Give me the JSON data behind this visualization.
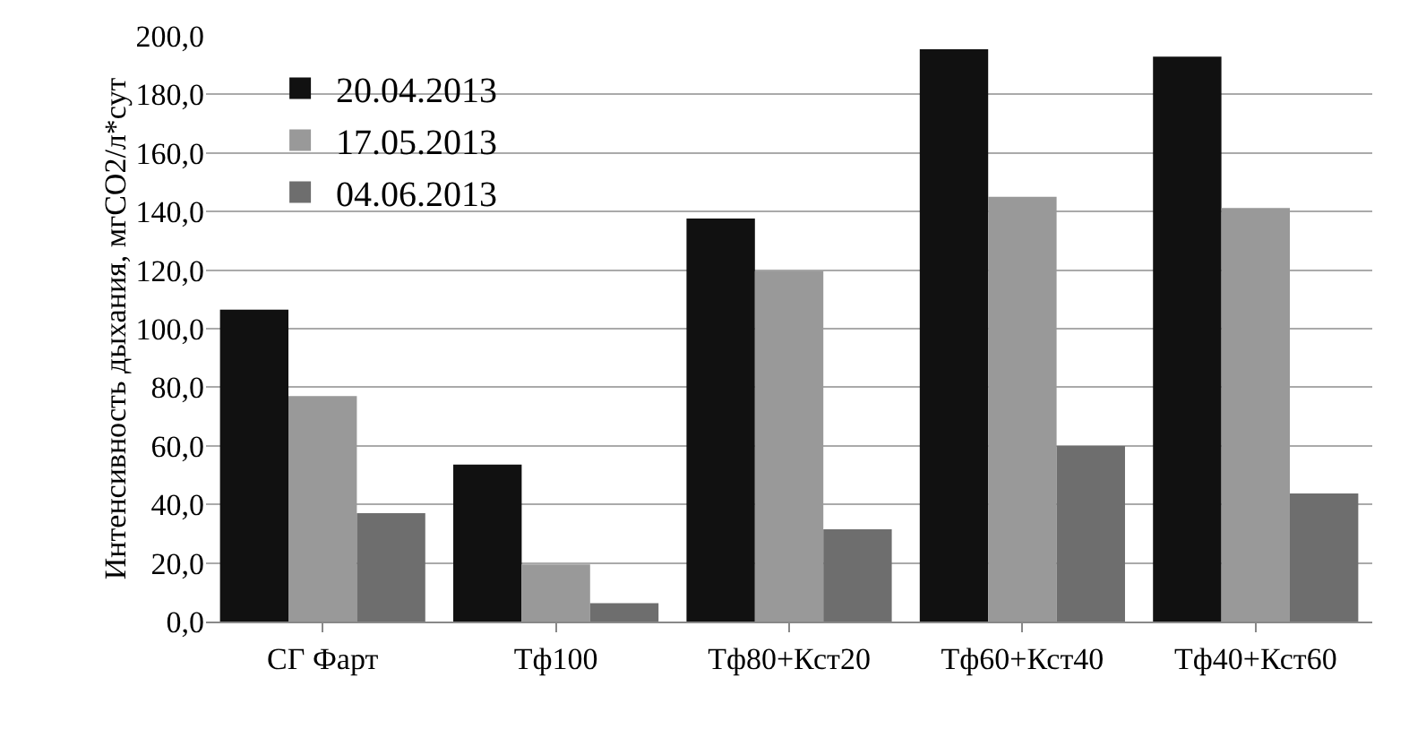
{
  "chart_data": {
    "type": "bar",
    "ylabel": "Интенсивность дыхания, мгСО2/л*сут",
    "categories": [
      "СГ Фарт",
      "Тф100",
      "Тф80+Кст20",
      "Тф60+Кст40",
      "Тф40+Кст60"
    ],
    "series": [
      {
        "name": "20.04.2013",
        "color": "#111111",
        "values": [
          106.5,
          53.6,
          137.6,
          195.4,
          192.9
        ]
      },
      {
        "name": "17.05.2013",
        "color": "#999999",
        "values": [
          77,
          19.5,
          119.7,
          145,
          141.2
        ]
      },
      {
        "name": "04.06.2013",
        "color": "#6e6e6e",
        "values": [
          37,
          6.3,
          31.5,
          59.9,
          43.7
        ]
      }
    ],
    "ylim": [
      0,
      200
    ],
    "yticks": [
      {
        "value": 0,
        "label": "0,0"
      },
      {
        "value": 20,
        "label": "20,0"
      },
      {
        "value": 40,
        "label": "40,0"
      },
      {
        "value": 60,
        "label": "60,0"
      },
      {
        "value": 80,
        "label": "80,0"
      },
      {
        "value": 100,
        "label": "100,0"
      },
      {
        "value": 120,
        "label": "120,0"
      },
      {
        "value": 140,
        "label": "140,0"
      },
      {
        "value": 160,
        "label": "160,0"
      },
      {
        "value": 180,
        "label": "180,0"
      },
      {
        "value": 200,
        "label": "200,0"
      }
    ],
    "grid": "y",
    "legend": "top left"
  }
}
